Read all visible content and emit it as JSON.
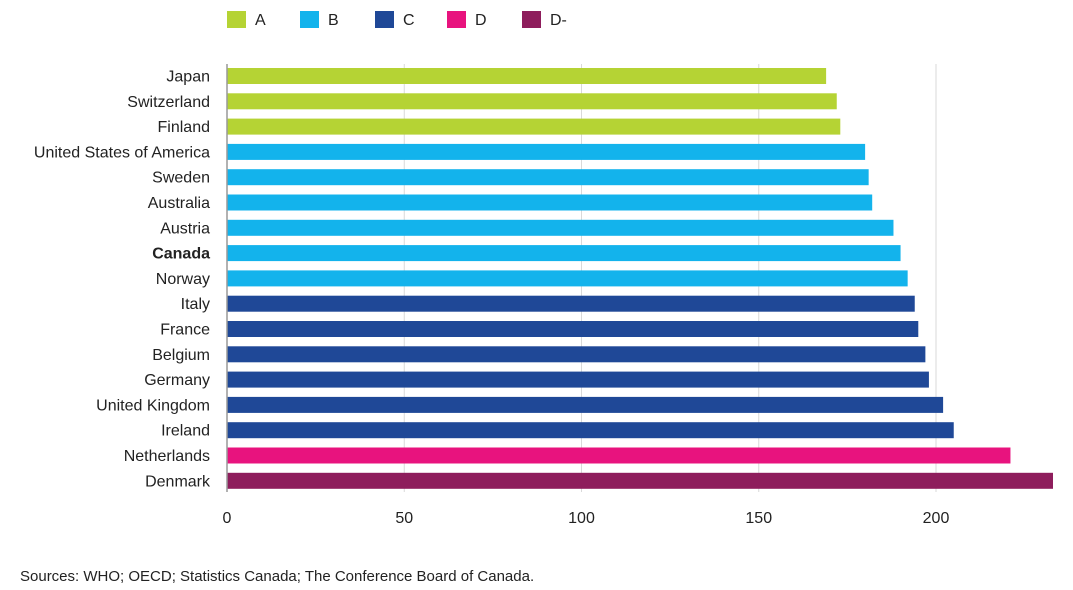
{
  "chart_data": {
    "type": "bar",
    "orientation": "horizontal",
    "categories": [
      "Japan",
      "Switzerland",
      "Finland",
      "United States of America",
      "Sweden",
      "Australia",
      "Austria",
      "Canada",
      "Norway",
      "Italy",
      "France",
      "Belgium",
      "Germany",
      "United Kingdom",
      "Ireland",
      "Netherlands",
      "Denmark"
    ],
    "values": [
      169,
      172,
      173,
      180,
      181,
      182,
      188,
      190,
      192,
      194,
      195,
      197,
      198,
      202,
      205,
      221,
      233
    ],
    "grades": [
      "A",
      "A",
      "A",
      "B",
      "B",
      "B",
      "B",
      "B",
      "B",
      "C",
      "C",
      "C",
      "C",
      "C",
      "C",
      "D",
      "D-"
    ],
    "highlight": "Canada",
    "legend": [
      {
        "name": "A",
        "color": "#b5d334"
      },
      {
        "name": "B",
        "color": "#13b3ec"
      },
      {
        "name": "C",
        "color": "#1f4897"
      },
      {
        "name": "D",
        "color": "#e8137e"
      },
      {
        "name": "D-",
        "color": "#8e1d5c"
      }
    ],
    "legend_position": "top-left",
    "xlim": [
      0,
      233
    ],
    "xticks": [
      0,
      50,
      100,
      150,
      200
    ],
    "grid": true,
    "title": "",
    "xlabel": "",
    "ylabel": ""
  },
  "source_note": "Sources: WHO; OECD; Statistics Canada; The Conference Board of Canada."
}
